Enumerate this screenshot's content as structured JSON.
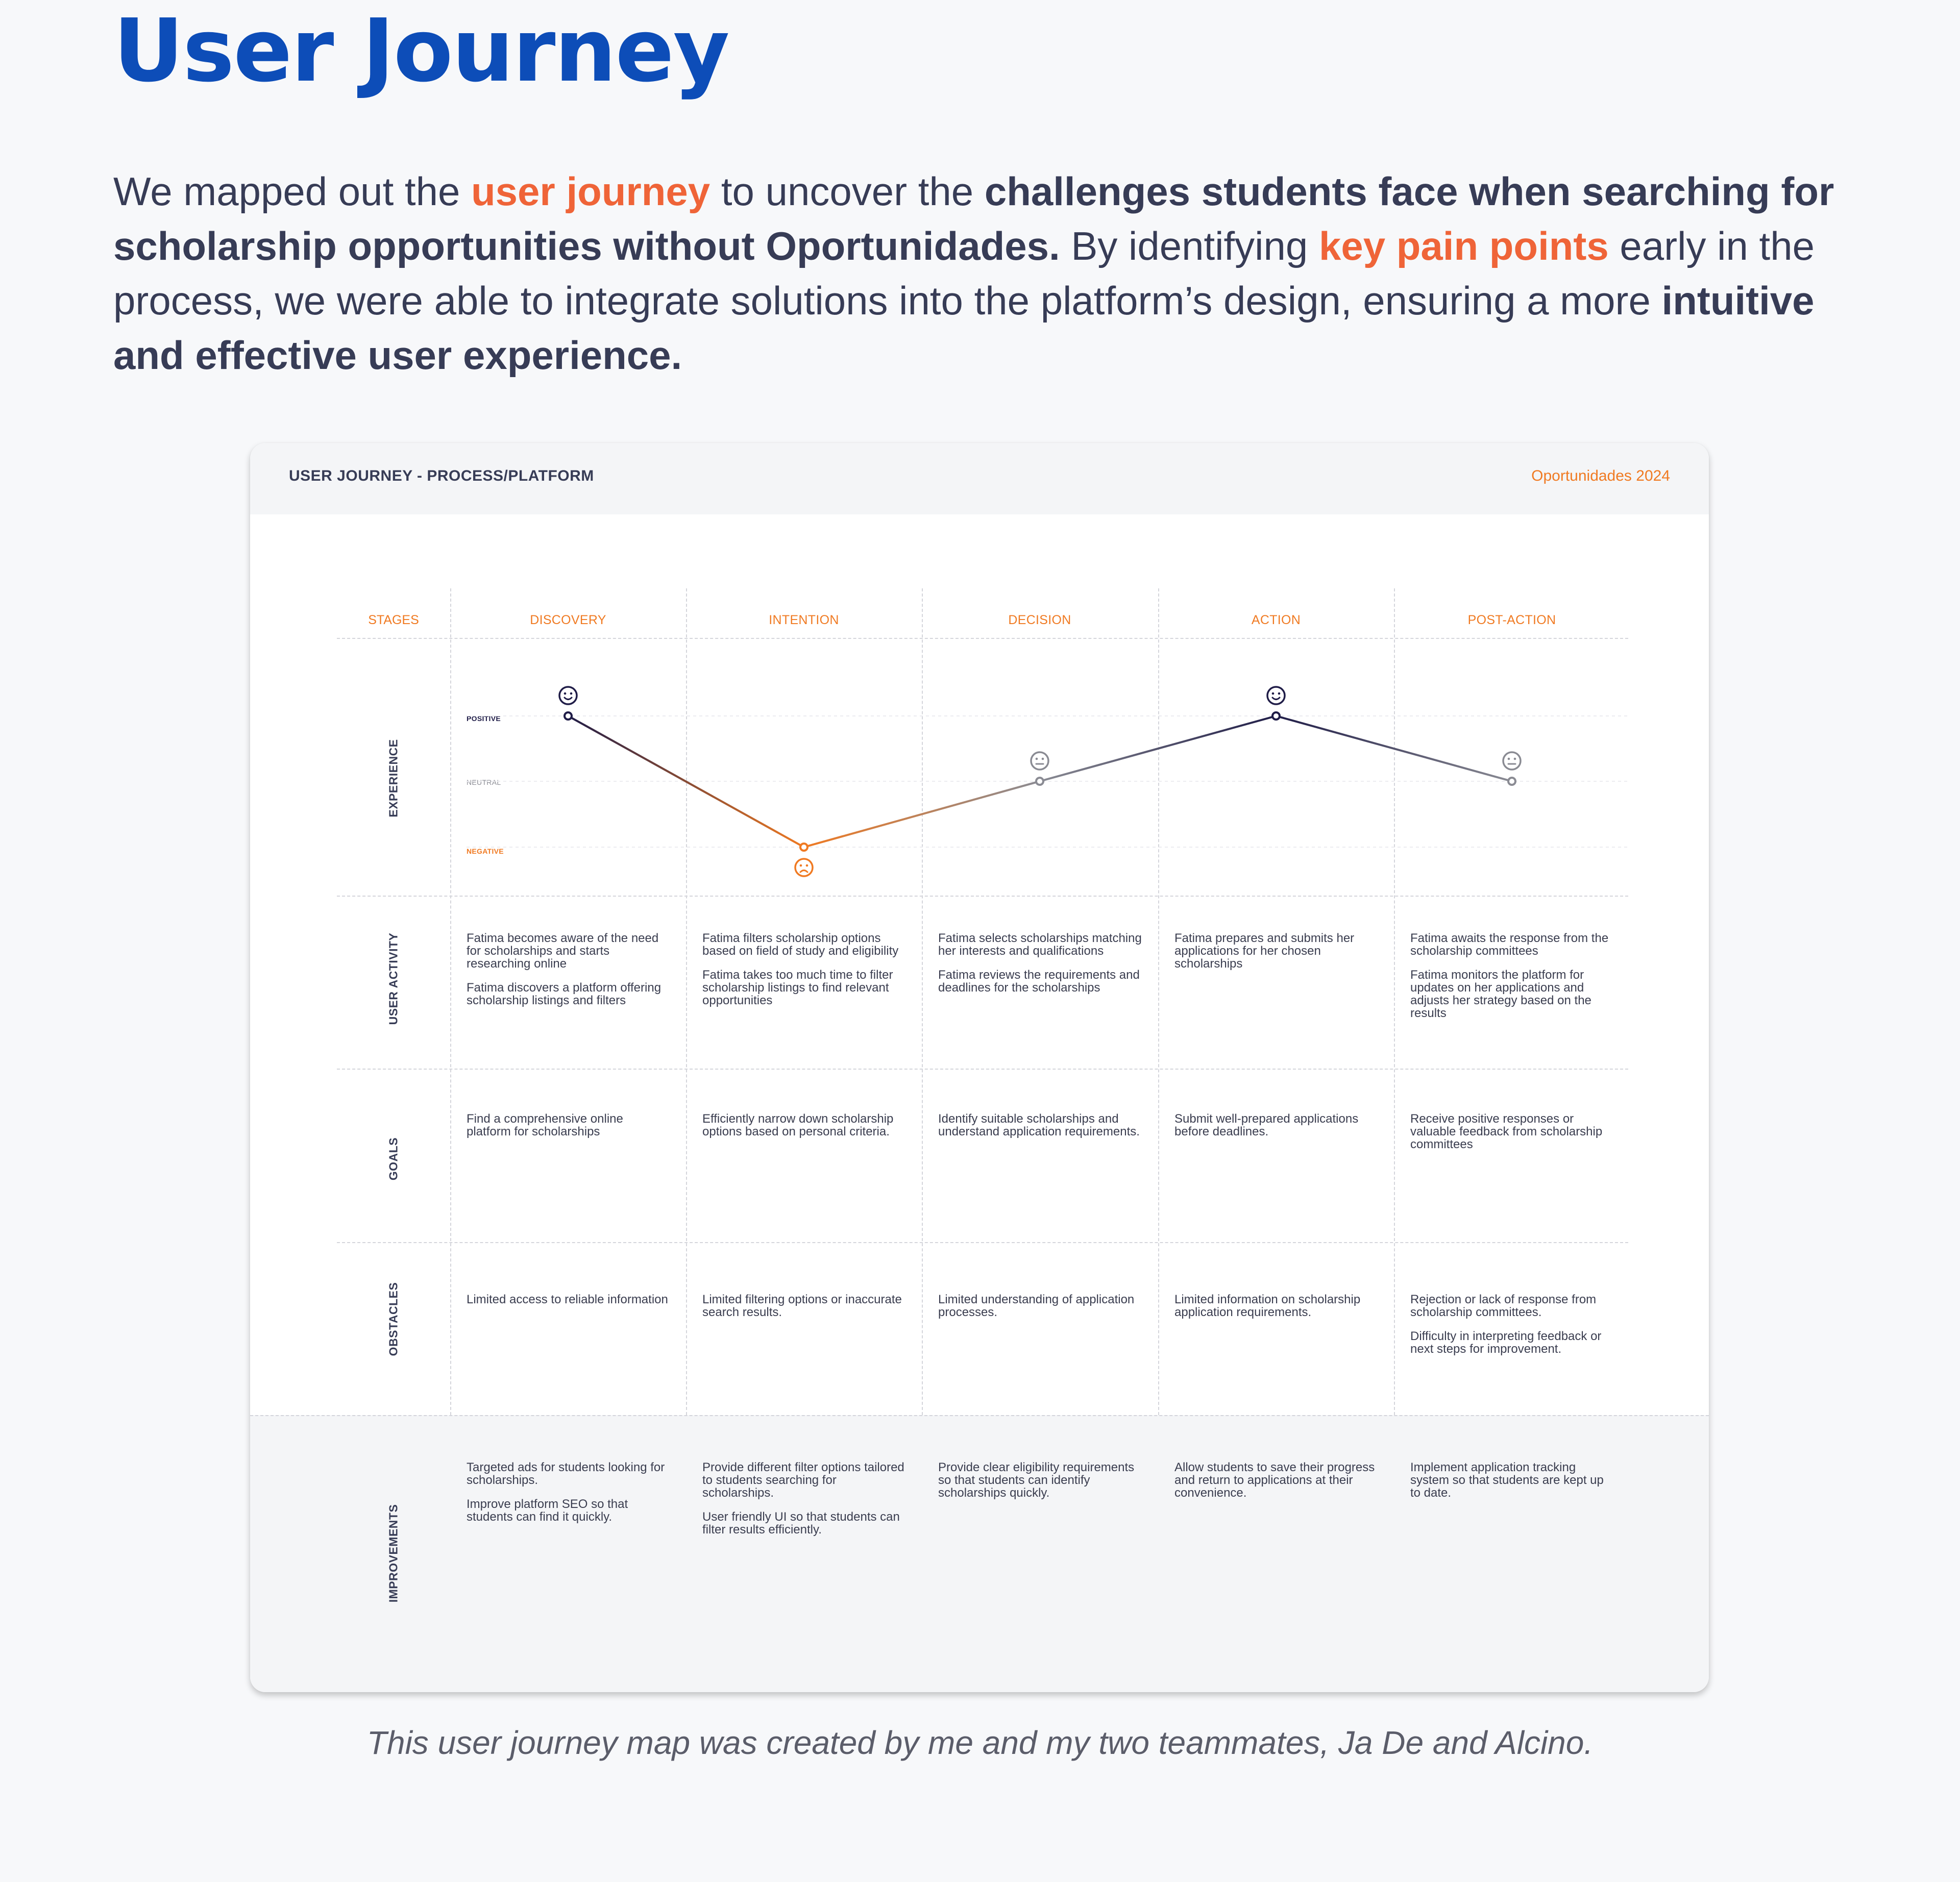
{
  "heading": "User Journey",
  "intro": {
    "parts": [
      {
        "t": "We mapped out the ",
        "s": "normal"
      },
      {
        "t": "user journey",
        "s": "hl"
      },
      {
        "t": " to uncover the ",
        "s": "normal"
      },
      {
        "t": "challenges students face when searching for scholarship opportunities without Oportunidades.",
        "s": "b"
      },
      {
        "t": " By identifying ",
        "s": "normal"
      },
      {
        "t": "key pain points",
        "s": "hl"
      },
      {
        "t": " early in the process, we were able to integrate solutions into the platform’s design, ensuring a more ",
        "s": "normal"
      },
      {
        "t": "intuitive and effective user experience.",
        "s": "b"
      }
    ]
  },
  "card": {
    "title": "USER JOURNEY - PROCESS/PLATFORM",
    "brand": "Oportunidades 2024",
    "stages_label": "STAGES",
    "stages": [
      "DISCOVERY",
      "INTENTION",
      "DECISION",
      "ACTION",
      "POST-ACTION"
    ],
    "rows": {
      "experience": "EXPERIENCE",
      "activity": "USER ACTIVITY",
      "goals": "GOALS",
      "obstacles": "OBSTACLES",
      "improvements": "IMPROVEMENTS"
    },
    "levels": {
      "positive": "POSITIVE",
      "neutral": "NEUTRAL",
      "negative": "NEGATIVE"
    },
    "activity": [
      [
        "Fatima becomes aware of the need for scholarships and starts researching online",
        "Fatima discovers a platform offering scholarship listings and filters"
      ],
      [
        "Fatima filters scholarship options based on field of study and eligibility",
        "Fatima takes too much time to filter scholarship listings to find relevant opportunities"
      ],
      [
        "Fatima selects scholarships matching her interests and qualifications",
        "Fatima reviews the requirements and deadlines for the scholarships"
      ],
      [
        "Fatima prepares and submits her applications for her chosen scholarships"
      ],
      [
        "Fatima awaits the response from the scholarship committees",
        "Fatima monitors the platform for updates on her applications and adjusts her strategy based on the results"
      ]
    ],
    "goals": [
      [
        "Find a comprehensive online platform for scholarships"
      ],
      [
        "Efficiently narrow down scholarship options based on personal criteria."
      ],
      [
        "Identify suitable scholarships and understand application requirements."
      ],
      [
        "Submit well-prepared applications before deadlines."
      ],
      [
        "Receive positive responses or valuable feedback from scholarship committees"
      ]
    ],
    "obstacles": [
      [
        "Limited access to reliable information"
      ],
      [
        "Limited filtering options or inaccurate search results."
      ],
      [
        "Limited understanding of application processes."
      ],
      [
        "Limited information on scholarship application requirements."
      ],
      [
        "Rejection or lack of response from scholarship committees.",
        "Difficulty in interpreting feedback or next steps for improvement."
      ]
    ],
    "improvements": [
      [
        "Targeted ads for students looking for scholarships.",
        "Improve platform SEO so that students can find it quickly."
      ],
      [
        "Provide different filter options tailored to students searching for scholarships.",
        "User friendly UI so that students can filter results efficiently."
      ],
      [
        "Provide clear eligibility requirements so that students can identify scholarships quickly."
      ],
      [
        "Allow students to save their progress and return to applications at their convenience."
      ],
      [
        "Implement application tracking system so that students are kept up to date."
      ]
    ]
  },
  "chart_data": {
    "type": "line",
    "categories": [
      "DISCOVERY",
      "INTENTION",
      "DECISION",
      "ACTION",
      "POST-ACTION"
    ],
    "levels": [
      "NEGATIVE",
      "NEUTRAL",
      "POSITIVE"
    ],
    "values": [
      "POSITIVE",
      "NEGATIVE",
      "NEUTRAL",
      "POSITIVE",
      "NEUTRAL"
    ],
    "colors": {
      "positive": "#1f1c47",
      "neutral": "#8a8b93",
      "negative": "#f07a22"
    }
  },
  "caption": "This user journey map was created by me and my two teammates, Ja De and Alcino."
}
